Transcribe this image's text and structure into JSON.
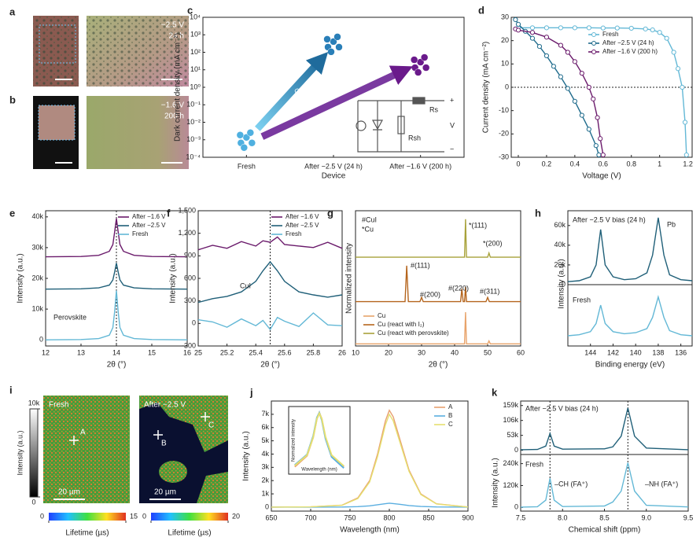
{
  "figure": {
    "image_panels": [
      {
        "panel": "a",
        "labels": [
          "−2.5 V",
          "24 h"
        ]
      },
      {
        "panel": "b",
        "labels": [
          "−1.6 V",
          "200 h"
        ]
      },
      {
        "panel": "i",
        "labels": [
          "Fresh",
          "After −2.5 V",
          "A",
          "B",
          "C",
          "20 µm",
          "20 µm"
        ]
      }
    ],
    "colorbars": [
      {
        "label": "Intensity (a.u.)",
        "ticks": [
          {
            "value": 10000,
            "label": "10k"
          },
          0
        ]
      },
      {
        "label": "Lifetime (µs)",
        "ticks": [
          0,
          15
        ]
      },
      {
        "label": "Lifetime (µs)",
        "ticks": [
          0,
          20
        ]
      }
    ]
  },
  "chart_data": [
    {
      "type": "scatter",
      "panel": "c",
      "log": true,
      "xlabel": "Device",
      "ylabel": "Dark current density (mA cm⁻²)",
      "categories": [
        "Fresh",
        "After −2.5 V (24 h)",
        "After −1.6 V (200 h)"
      ],
      "values": [
        0.001,
        300,
        20
      ],
      "colors": [
        "#4fb0e0",
        "#2a7fb8",
        "#6a1a8b"
      ],
      "ylim": [
        0.0001,
        10000
      ],
      "yticks": [
        {
          "value": 0.0001,
          "label": "10⁻⁴"
        },
        {
          "value": 0.001,
          "label": "10⁻³"
        },
        {
          "value": 0.01,
          "label": "10⁻²"
        },
        {
          "value": 0.1,
          "label": "10⁻¹"
        },
        {
          "value": 1,
          "label": "10⁰"
        },
        {
          "value": 10,
          "label": "10¹"
        },
        {
          "value": 100,
          "label": "10²"
        },
        {
          "value": 1000,
          "label": "10³"
        },
        {
          "value": 10000,
          "label": "10⁴"
        }
      ],
      "annotations": [
        "Gradual degradation",
        "Rs",
        "Rsh",
        "V",
        "+",
        "−"
      ]
    },
    {
      "type": "line",
      "panel": "d",
      "markers": true,
      "xlabel": "Voltage (V)",
      "ylabel": "Current density (mA cm⁻²)",
      "legend": "upper right",
      "xlim": [
        -0.05,
        1.23
      ],
      "ylim": [
        -30,
        30
      ],
      "xticks": [
        0,
        0.2,
        0.4,
        0.6,
        0.8,
        1.0,
        1.2
      ],
      "yticks": [
        -30,
        -20,
        -10,
        0,
        10,
        20,
        30
      ],
      "hlines": [
        0
      ],
      "series": [
        {
          "name": "Fresh",
          "color": "#63b8d6",
          "x": [
            0,
            0.1,
            0.2,
            0.3,
            0.4,
            0.5,
            0.6,
            0.7,
            0.8,
            0.9,
            0.95,
            1.0,
            1.05,
            1.1,
            1.13,
            1.16,
            1.18,
            1.19
          ],
          "values": [
            25.5,
            25.5,
            25.5,
            25.5,
            25.5,
            25.5,
            25.4,
            25.4,
            25.3,
            25,
            24.6,
            23.5,
            21,
            15,
            8,
            0,
            -15,
            -29
          ]
        },
        {
          "name": "After −2.5 V (24 h)",
          "color": "#1f6b8c",
          "x": [
            -0.02,
            0,
            0.05,
            0.1,
            0.15,
            0.2,
            0.25,
            0.3,
            0.35,
            0.4,
            0.45,
            0.5,
            0.55,
            0.57
          ],
          "values": [
            29,
            27,
            24,
            21,
            17.5,
            13.5,
            9,
            4.5,
            -0.5,
            -6,
            -12,
            -18,
            -25,
            -29
          ]
        },
        {
          "name": "After −1.6 V (200 h)",
          "color": "#6a1a6b",
          "x": [
            -0.02,
            0,
            0.1,
            0.2,
            0.3,
            0.35,
            0.4,
            0.45,
            0.5,
            0.53,
            0.56,
            0.58,
            0.6
          ],
          "values": [
            25,
            24.5,
            23.5,
            21.5,
            18,
            15,
            11,
            6,
            0,
            -5,
            -13,
            -22,
            -29
          ]
        }
      ]
    },
    {
      "type": "line",
      "panel": "e",
      "xlabel": "2θ (°)",
      "ylabel": "Intensity (a.u.)",
      "legend": "upper right",
      "xlim": [
        12,
        16
      ],
      "ylim": [
        -2000,
        42000
      ],
      "xticks": [
        12,
        13,
        14,
        15,
        16
      ],
      "yticks": [
        0,
        {
          "value": 10000,
          "label": "10k"
        },
        {
          "value": 20000,
          "label": "20k"
        },
        {
          "value": 30000,
          "label": "30k"
        },
        {
          "value": 40000,
          "label": "40k"
        }
      ],
      "vlines": [
        14
      ],
      "x": [
        12,
        13,
        13.5,
        13.8,
        13.9,
        13.95,
        14,
        14.05,
        14.1,
        14.2,
        14.5,
        15,
        16
      ],
      "series": [
        {
          "name": "After −1.6 V",
          "color": "#6a1a6b",
          "values": [
            27000,
            27100,
            27500,
            28800,
            31000,
            35000,
            39500,
            35000,
            31000,
            28800,
            27500,
            27100,
            27000
          ]
        },
        {
          "name": "After −2.5 V",
          "color": "#1f5f78",
          "values": [
            16500,
            16600,
            16900,
            17800,
            19500,
            22000,
            25000,
            22000,
            19500,
            17800,
            16900,
            16600,
            16500
          ]
        },
        {
          "name": "Fresh",
          "color": "#63b8d6",
          "values": [
            0,
            100,
            400,
            1500,
            4000,
            9000,
            16000,
            9000,
            4000,
            1500,
            400,
            100,
            0
          ]
        }
      ],
      "annotations": [
        "Perovskite"
      ]
    },
    {
      "type": "line",
      "panel": "f",
      "xlabel": "2θ (°)",
      "ylabel": "Intensity (a.u.)",
      "legend": "upper right",
      "xlim": [
        25,
        26
      ],
      "ylim": [
        -300,
        1500
      ],
      "xticks": [
        25,
        25.2,
        25.4,
        25.6,
        25.8,
        26
      ],
      "yticks": [
        -300,
        0,
        300,
        600,
        900,
        {
          "value": 1200,
          "label": "1,200"
        },
        {
          "value": 1500,
          "label": "1,500"
        }
      ],
      "vlines": [
        25.5
      ],
      "x": [
        25,
        25.1,
        25.2,
        25.3,
        25.4,
        25.45,
        25.5,
        25.55,
        25.6,
        25.7,
        25.8,
        25.9,
        26
      ],
      "series": [
        {
          "name": "After −1.6 V",
          "color": "#6a1a6b",
          "values": [
            980,
            1040,
            1000,
            1090,
            1030,
            1100,
            1080,
            1150,
            1050,
            1030,
            1010,
            1080,
            1000
          ]
        },
        {
          "name": "After −2.5 V",
          "color": "#1f5f78",
          "values": [
            280,
            330,
            360,
            420,
            560,
            700,
            820,
            700,
            560,
            420,
            380,
            350,
            380
          ]
        },
        {
          "name": "Fresh",
          "color": "#63b8d6",
          "values": [
            50,
            20,
            -50,
            60,
            -30,
            40,
            -80,
            80,
            30,
            -40,
            140,
            -20,
            -30
          ]
        }
      ],
      "annotations": [
        "CuI"
      ]
    },
    {
      "type": "line",
      "panel": "g",
      "xlabel": "2θ (°)",
      "ylabel": "Normalized intensity",
      "legend": "lower left",
      "xlim": [
        10,
        60
      ],
      "ylim": [
        0,
        3.2
      ],
      "xticks": [
        10,
        20,
        30,
        40,
        50,
        60
      ],
      "series": [
        {
          "name": "Cu",
          "color": "#e8a36a",
          "x": [
            10,
            43,
            43.3,
            43.6,
            50,
            50.4,
            50.8,
            60
          ],
          "values": [
            0.05,
            0.05,
            0.8,
            0.05,
            0.05,
            0.12,
            0.05,
            0.05
          ]
        },
        {
          "name": "Cu (react with I₂)",
          "color": "#b5651d",
          "x": [
            10,
            25,
            25.5,
            26,
            29.5,
            30,
            30.5,
            41.8,
            42.2,
            42.6,
            43,
            43.3,
            43.6,
            49.5,
            50,
            50.5,
            60
          ],
          "values": [
            1.05,
            1.05,
            1.9,
            1.05,
            1.05,
            1.15,
            1.05,
            1.05,
            1.35,
            1.05,
            1.05,
            1.4,
            1.05,
            1.05,
            1.15,
            1.05,
            1.05
          ]
        },
        {
          "name": "Cu (react with perovskite)",
          "color": "#a8a23a",
          "x": [
            10,
            43,
            43.3,
            43.6,
            50,
            50.4,
            50.8,
            60
          ],
          "values": [
            2.1,
            2.1,
            3.0,
            2.1,
            2.1,
            2.2,
            2.1,
            2.1
          ]
        }
      ],
      "annotations": [
        "#CuI",
        "*Cu",
        "*(111)",
        "*(200)",
        "#(111)",
        "#(200)",
        "#(220)",
        "#(311)"
      ]
    },
    {
      "type": "line",
      "panel": "h",
      "xlim": [
        146,
        135
      ],
      "ylim": [
        0,
        75000
      ],
      "yticks": [
        0,
        {
          "value": 20000,
          "label": "20k"
        },
        {
          "value": 40000,
          "label": "40k"
        },
        {
          "value": 60000,
          "label": "60k"
        }
      ],
      "x": [
        146,
        145,
        144,
        143.5,
        143.1,
        142.7,
        142,
        141,
        140,
        139,
        138.5,
        138,
        137.5,
        137,
        136,
        135
      ],
      "series": [
        {
          "color": "#1f5f78",
          "values": [
            3000,
            4000,
            8000,
            20000,
            56000,
            20000,
            8000,
            5000,
            6000,
            12000,
            30000,
            68000,
            30000,
            10000,
            5000,
            4000
          ]
        }
      ],
      "annotations": [
        "After −2.5 V bias (24 h)",
        "Pb"
      ]
    },
    {
      "type": "line",
      "xlabel": "Binding energy (eV)",
      "ylabel": "Intensity (a.u.)",
      "xlim": [
        146,
        135
      ],
      "ylim": [
        0,
        60000
      ],
      "xticks": [
        144,
        142,
        140,
        138,
        136
      ],
      "x": [
        146,
        145,
        144,
        143.5,
        143.1,
        142.7,
        142,
        141,
        140,
        139,
        138.5,
        138,
        137.5,
        137,
        136,
        135
      ],
      "series": [
        {
          "color": "#63b8d6",
          "values": [
            10000,
            11000,
            14000,
            22000,
            40000,
            22000,
            14000,
            12000,
            13000,
            17000,
            28000,
            48000,
            28000,
            15000,
            11000,
            10000
          ]
        }
      ],
      "annotations": [
        "Fresh"
      ]
    },
    {
      "type": "line",
      "panel": "j",
      "xlabel": "Wavelength (nm)",
      "ylabel": "Intensity (a.u.)",
      "legend": "upper right",
      "xlim": [
        650,
        900
      ],
      "ylim": [
        -300,
        8000
      ],
      "xticks": [
        650,
        700,
        750,
        800,
        850,
        900
      ],
      "yticks": [
        0,
        {
          "value": 1000,
          "label": "1k"
        },
        {
          "value": 2000,
          "label": "2k"
        },
        {
          "value": 3000,
          "label": "3k"
        },
        {
          "value": 4000,
          "label": "4k"
        },
        {
          "value": 5000,
          "label": "5k"
        },
        {
          "value": 6000,
          "label": "6k"
        },
        {
          "value": 7000,
          "label": "7k"
        }
      ],
      "x": [
        650,
        700,
        740,
        760,
        775,
        785,
        795,
        800,
        805,
        815,
        825,
        840,
        860,
        900
      ],
      "series": [
        {
          "name": "A",
          "color": "#e8a070",
          "values": [
            0,
            20,
            150,
            700,
            2000,
            4000,
            6500,
            7300,
            6800,
            4800,
            2800,
            1000,
            250,
            10
          ]
        },
        {
          "name": "B",
          "color": "#5aaee0",
          "values": [
            0,
            0,
            10,
            40,
            100,
            180,
            260,
            300,
            270,
            200,
            120,
            50,
            15,
            0
          ]
        },
        {
          "name": "C",
          "color": "#e6e070",
          "values": [
            0,
            20,
            140,
            650,
            1900,
            3800,
            6200,
            7000,
            6500,
            4600,
            2700,
            950,
            240,
            10
          ]
        }
      ]
    },
    {
      "type": "line",
      "inset": true,
      "xlabel": "Wavelength (nm)",
      "ylabel": "Normalized intensity",
      "xlim": [
        695,
        745
      ],
      "ylim": [
        0,
        1.1
      ],
      "x": [
        700,
        710,
        715,
        718,
        720,
        722,
        725,
        730,
        740
      ],
      "series": [
        {
          "color": "#e8a070",
          "values": [
            0.12,
            0.3,
            0.6,
            0.9,
            1,
            0.9,
            0.6,
            0.3,
            0.12
          ]
        },
        {
          "color": "#5aaee0",
          "values": [
            0.15,
            0.32,
            0.62,
            0.92,
            1,
            0.88,
            0.58,
            0.28,
            0.1
          ]
        },
        {
          "color": "#e6e070",
          "values": [
            0.14,
            0.31,
            0.6,
            0.9,
            0.99,
            0.9,
            0.61,
            0.31,
            0.13
          ]
        }
      ]
    },
    {
      "type": "line",
      "panel": "k",
      "xlim": [
        7.5,
        9.5
      ],
      "ylim": [
        -15000,
        175000
      ],
      "yticks": [
        0,
        {
          "value": 53000,
          "label": "53k"
        },
        {
          "value": 106000,
          "label": "106k"
        },
        {
          "value": 159000,
          "label": "159k"
        }
      ],
      "vlines": [
        7.85,
        8.78
      ],
      "x": [
        7.5,
        7.7,
        7.8,
        7.85,
        7.9,
        8.0,
        8.5,
        8.6,
        8.7,
        8.78,
        8.86,
        9.0,
        9.5
      ],
      "series": [
        {
          "color": "#1f5f78",
          "values": [
            2000,
            3000,
            15000,
            60000,
            15000,
            4000,
            5000,
            12000,
            50000,
            150000,
            50000,
            8000,
            2000
          ]
        }
      ],
      "annotations": [
        "After −2.5 V bias (24 h)"
      ]
    },
    {
      "type": "line",
      "xlabel": "Chemical shift (ppm)",
      "ylabel": "Intensity (a.u.)",
      "xlim": [
        7.5,
        9.5
      ],
      "ylim": [
        -20000,
        290000
      ],
      "xticks": [
        7.5,
        {
          "value": 8,
          "label": "8.0"
        },
        8.5,
        {
          "value": 9,
          "label": "9.0"
        },
        9.5
      ],
      "yticks": [
        0,
        {
          "value": 120000,
          "label": "120k"
        },
        {
          "value": 240000,
          "label": "240k"
        }
      ],
      "vlines": [
        7.85,
        8.78
      ],
      "x": [
        7.5,
        7.7,
        7.8,
        7.85,
        7.9,
        8.0,
        8.5,
        8.6,
        8.7,
        8.78,
        8.86,
        9.0,
        9.5
      ],
      "series": [
        {
          "color": "#63b8d6",
          "values": [
            2000,
            4000,
            40000,
            160000,
            40000,
            5000,
            8000,
            30000,
            90000,
            245000,
            90000,
            12000,
            3000
          ]
        }
      ],
      "annotations": [
        "Fresh",
        "–CH (FA⁺)",
        "–NH (FA⁺)"
      ]
    }
  ]
}
